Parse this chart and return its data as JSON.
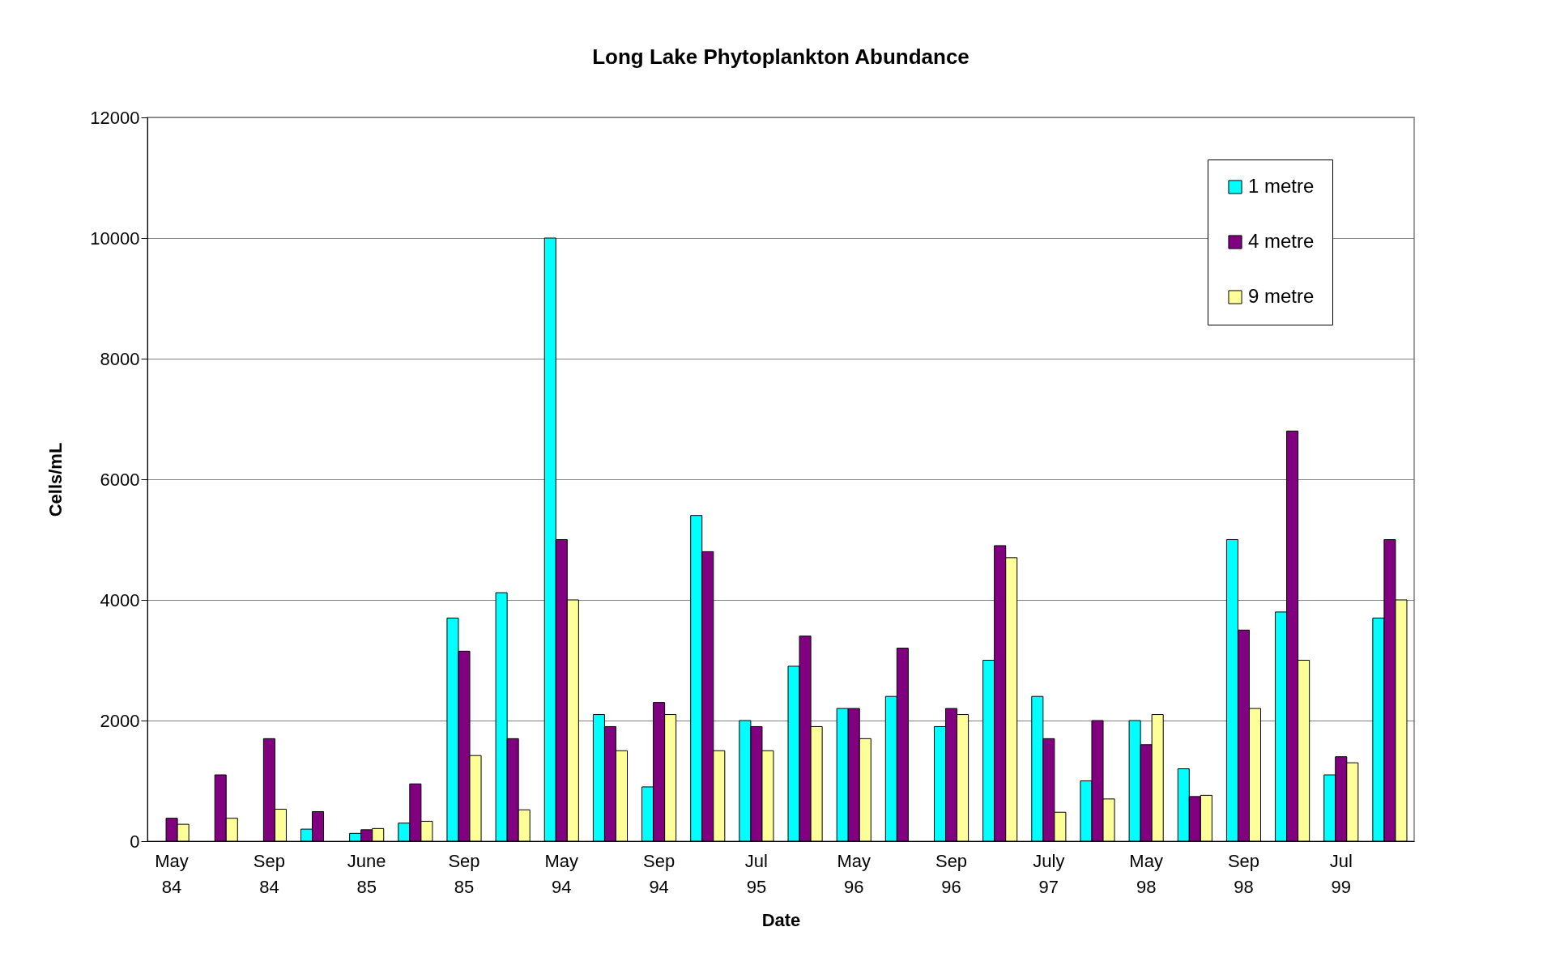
{
  "chart_data": {
    "type": "bar",
    "title": "Long Lake Phytoplankton Abundance",
    "xlabel": "Date",
    "ylabel": "Cells/mL",
    "categories": [
      "May 84",
      null,
      "Sep 84",
      null,
      "June 85",
      null,
      "Sep 85",
      null,
      "May 94",
      null,
      "Sep 94",
      null,
      "Jul 95",
      null,
      "May 96",
      null,
      "Sep 96",
      null,
      "July 97",
      null,
      "May 98",
      null,
      "Sep 98",
      null,
      "Jul 99",
      null
    ],
    "series": [
      {
        "name": "1 metre",
        "color": "#00ffff",
        "values": [
          null,
          null,
          null,
          200,
          130,
          300,
          3700,
          4120,
          10000,
          2100,
          900,
          5400,
          2000,
          2900,
          2200,
          2400,
          1900,
          3000,
          2400,
          1000,
          2000,
          1200,
          5000,
          3800,
          1100,
          3700
        ]
      },
      {
        "name": "4 metre",
        "color": "#800080",
        "values": [
          380,
          1100,
          1700,
          490,
          190,
          950,
          3150,
          1700,
          5000,
          1900,
          2300,
          4800,
          1900,
          3400,
          2200,
          3200,
          2200,
          4900,
          1700,
          2000,
          1600,
          740,
          3500,
          6800,
          1400,
          5000
        ]
      },
      {
        "name": "9 metre",
        "color": "#ffff99",
        "values": [
          280,
          380,
          530,
          null,
          210,
          330,
          1420,
          520,
          4000,
          1500,
          2100,
          1500,
          1500,
          1900,
          1700,
          null,
          2100,
          4700,
          480,
          700,
          2100,
          760,
          2200,
          3000,
          1300,
          4000
        ]
      }
    ],
    "ylim": [
      0,
      12000
    ],
    "yticks": [
      0,
      2000,
      4000,
      6000,
      8000,
      10000,
      12000
    ],
    "grid": "y",
    "legend": "top right"
  }
}
